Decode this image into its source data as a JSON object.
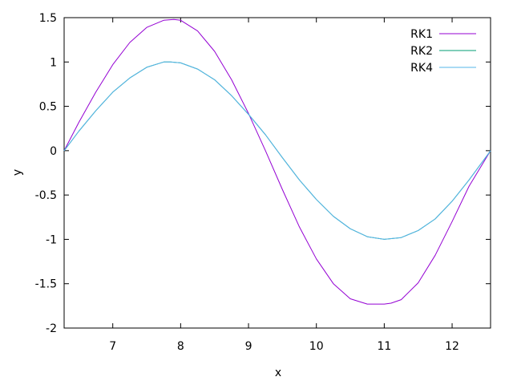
{
  "chart_data": {
    "type": "line",
    "title": "",
    "xlabel": "x",
    "ylabel": "y",
    "xlim": [
      6.2832,
      12.5664
    ],
    "ylim": [
      -2,
      1.5
    ],
    "xticks": [
      7,
      8,
      9,
      10,
      11,
      12
    ],
    "yticks": [
      -2,
      -1.5,
      -1,
      -0.5,
      0,
      0.5,
      1,
      1.5
    ],
    "grid": false,
    "legend_position": "top-right",
    "series": [
      {
        "name": "RK1",
        "color": "#9400d3",
        "x": [
          6.2832,
          6.5,
          6.75,
          7.0,
          7.25,
          7.5,
          7.75,
          7.9,
          8.0,
          8.25,
          8.5,
          8.75,
          9.0,
          9.25,
          9.5,
          9.75,
          10.0,
          10.25,
          10.5,
          10.75,
          11.0,
          11.1,
          11.25,
          11.5,
          11.75,
          12.0,
          12.25,
          12.5664
        ],
        "y": [
          0.0,
          0.32,
          0.66,
          0.97,
          1.22,
          1.39,
          1.47,
          1.48,
          1.47,
          1.35,
          1.12,
          0.8,
          0.42,
          0.0,
          -0.44,
          -0.86,
          -1.22,
          -1.5,
          -1.67,
          -1.73,
          -1.73,
          -1.72,
          -1.68,
          -1.49,
          -1.18,
          -0.8,
          -0.4,
          0.0
        ]
      },
      {
        "name": "RK2",
        "color": "#009e73",
        "x": [
          6.2832,
          6.5,
          6.75,
          7.0,
          7.25,
          7.5,
          7.75,
          7.85,
          8.0,
          8.25,
          8.5,
          8.75,
          9.0,
          9.25,
          9.5,
          9.75,
          10.0,
          10.25,
          10.5,
          10.75,
          11.0,
          11.25,
          11.5,
          11.75,
          12.0,
          12.25,
          12.5664
        ],
        "y": [
          0.0,
          0.22,
          0.45,
          0.66,
          0.82,
          0.94,
          1.0,
          1.0,
          0.99,
          0.92,
          0.8,
          0.62,
          0.41,
          0.18,
          -0.08,
          -0.33,
          -0.55,
          -0.74,
          -0.88,
          -0.97,
          -1.0,
          -0.98,
          -0.9,
          -0.77,
          -0.57,
          -0.33,
          0.0
        ]
      },
      {
        "name": "RK4",
        "color": "#56b4e9",
        "x": [
          6.2832,
          6.5,
          6.75,
          7.0,
          7.25,
          7.5,
          7.75,
          7.85,
          8.0,
          8.25,
          8.5,
          8.75,
          9.0,
          9.25,
          9.5,
          9.75,
          10.0,
          10.25,
          10.5,
          10.75,
          11.0,
          11.25,
          11.5,
          11.75,
          12.0,
          12.25,
          12.5664
        ],
        "y": [
          0.0,
          0.22,
          0.45,
          0.66,
          0.82,
          0.94,
          1.0,
          1.0,
          0.99,
          0.92,
          0.8,
          0.62,
          0.41,
          0.18,
          -0.08,
          -0.33,
          -0.55,
          -0.74,
          -0.88,
          -0.97,
          -1.0,
          -0.98,
          -0.9,
          -0.77,
          -0.57,
          -0.33,
          0.0
        ]
      }
    ]
  }
}
